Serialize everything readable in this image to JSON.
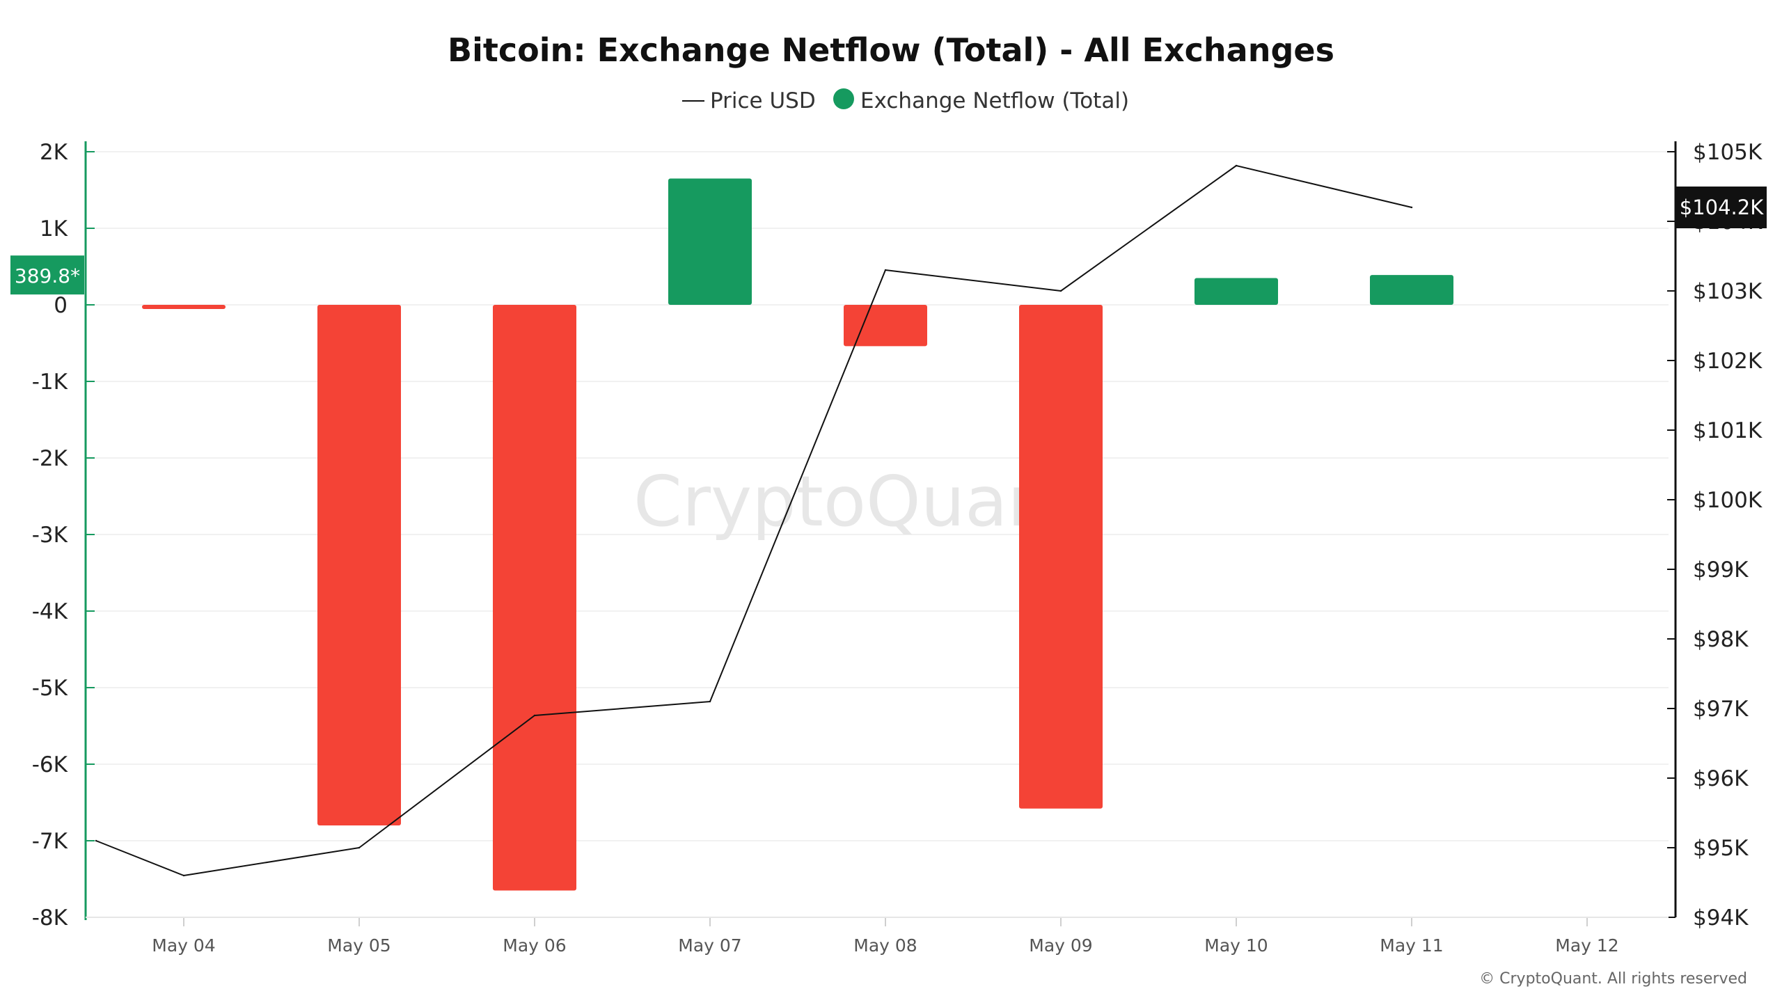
{
  "chart_data": {
    "type": "bar",
    "title": "Bitcoin: Exchange Netflow (Total) - All Exchanges",
    "legend": [
      {
        "name": "Price USD",
        "marker": "line",
        "color": "#111111"
      },
      {
        "name": "Exchange Netflow (Total)",
        "marker": "dot",
        "color": "#169a5f"
      }
    ],
    "legend_position": "top-center",
    "categories": [
      "May 04",
      "May 05",
      "May 06",
      "May 07",
      "May 08",
      "May 09",
      "May 10",
      "May 11",
      "May 12"
    ],
    "series": [
      {
        "name": "Exchange Netflow (Total)",
        "type": "bar",
        "axis": "left",
        "values": [
          -50,
          -6800,
          -7650,
          1650,
          -540,
          -6580,
          350,
          390,
          null
        ],
        "positive_color": "#169a5f",
        "negative_color": "#f44336"
      },
      {
        "name": "Price USD",
        "type": "line",
        "axis": "right",
        "color": "#111111",
        "points": [
          {
            "x": "May 03.5",
            "y": 95100
          },
          {
            "x": "May 04",
            "y": 94600
          },
          {
            "x": "May 05",
            "y": 95000
          },
          {
            "x": "May 06",
            "y": 96900
          },
          {
            "x": "May 07",
            "y": 97100
          },
          {
            "x": "May 08",
            "y": 103300
          },
          {
            "x": "May 09",
            "y": 103000
          },
          {
            "x": "May 10",
            "y": 104800
          },
          {
            "x": "May 11",
            "y": 104200
          }
        ]
      }
    ],
    "left_axis": {
      "ylim": [
        -8000,
        2000
      ],
      "ticks": [
        2000,
        1000,
        0,
        -1000,
        -2000,
        -3000,
        -4000,
        -5000,
        -6000,
        -7000,
        -8000
      ],
      "tick_labels": [
        "2K",
        "1K",
        "0",
        "-1K",
        "-2K",
        "-3K",
        "-4K",
        "-5K",
        "-6K",
        "-7K",
        "-8K"
      ],
      "current_value_badge": "389.8*",
      "current_value": 389.8,
      "badge_color": "#169a5f"
    },
    "right_axis": {
      "ylim": [
        94000,
        105000
      ],
      "ticks": [
        105000,
        104000,
        103000,
        102000,
        101000,
        100000,
        99000,
        98000,
        97000,
        96000,
        95000,
        94000
      ],
      "tick_labels": [
        "$105K",
        "$104K",
        "$103K",
        "$102K",
        "$101K",
        "$100K",
        "$99K",
        "$98K",
        "$97K",
        "$96K",
        "$95K",
        "$94K"
      ],
      "current_value_badge": "$104.2K",
      "current_value": 104200,
      "badge_color": "#111111"
    },
    "grid": true,
    "watermark": "CryptoQuant",
    "copyright": "© CryptoQuant. All rights reserved"
  }
}
